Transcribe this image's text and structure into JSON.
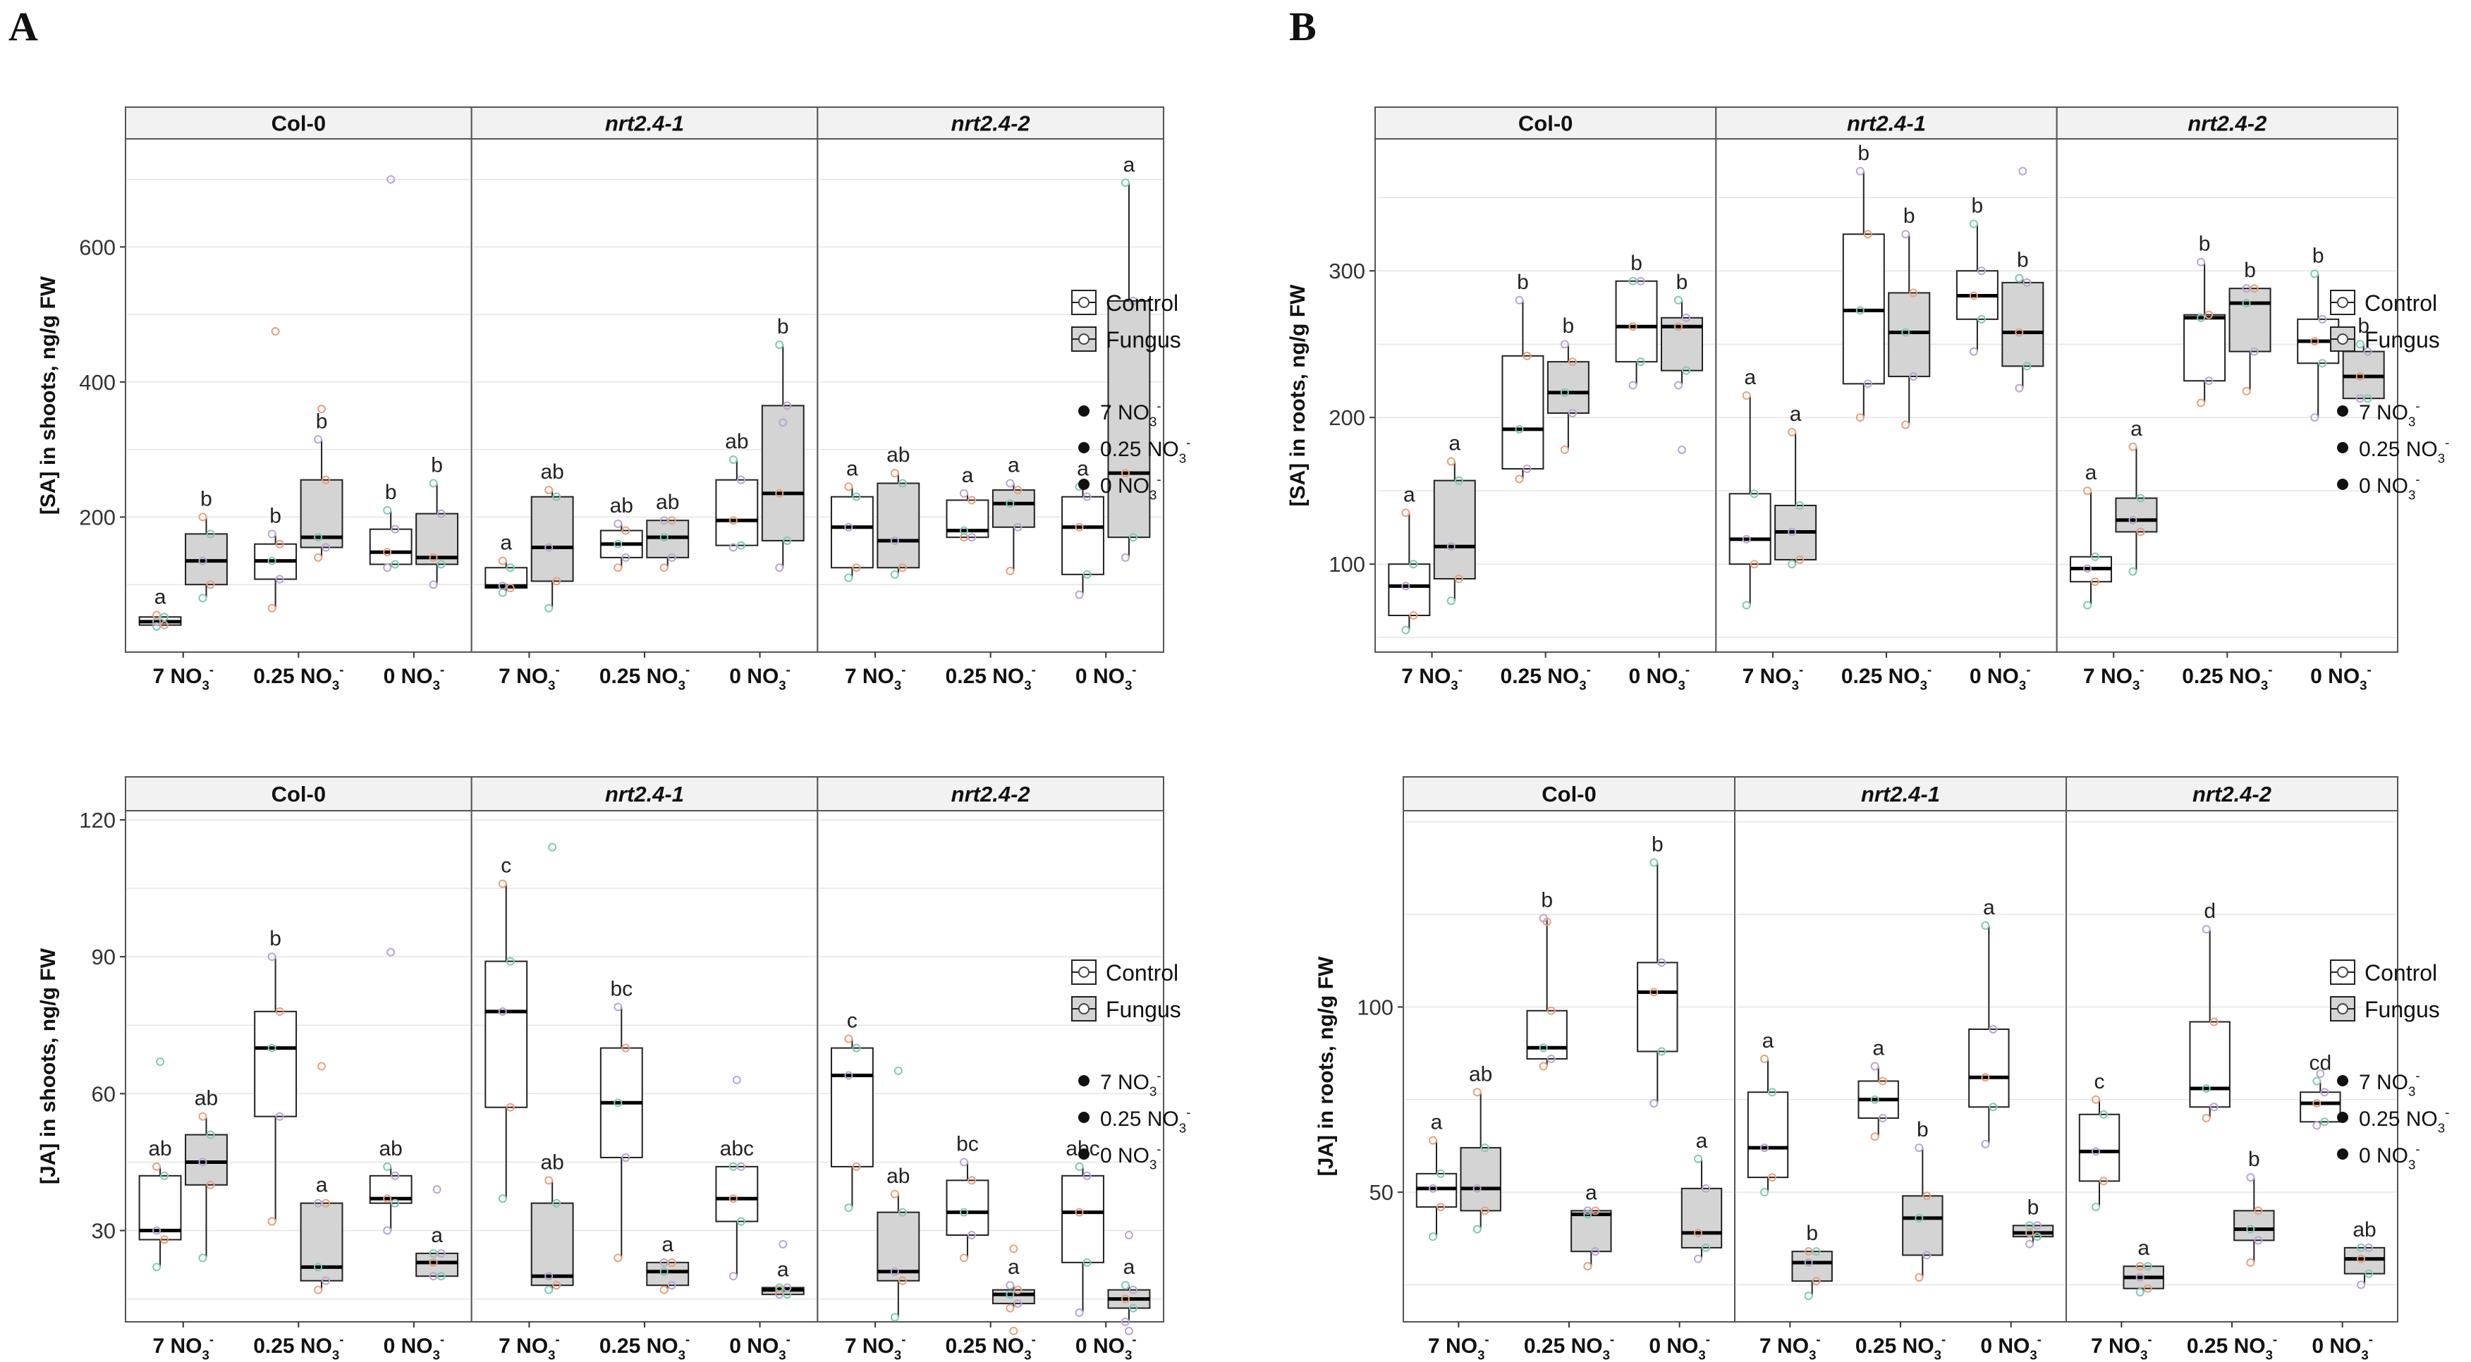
{
  "figure": {
    "panel_labels": [
      "A",
      "B"
    ]
  },
  "legend": {
    "treatment_labels": [
      "Control",
      "Fungus"
    ],
    "nitrate_labels": [
      "7 NO3-",
      "0.25 NO3-",
      "0 NO3-"
    ],
    "nitrate_parts": [
      {
        "num": "7",
        "ion": "NO",
        "sub": "3",
        "sup": "-"
      },
      {
        "num": "0.25",
        "ion": "NO",
        "sub": "3",
        "sup": "-"
      },
      {
        "num": "0",
        "ion": "NO",
        "sub": "3",
        "sup": "-"
      }
    ]
  },
  "chart_data": [
    {
      "type": "box",
      "panel": "A",
      "position": "top",
      "ylabel": "[SA] in shoots, ng/g FW",
      "ylim": [
        0,
        760
      ],
      "yticks": [
        200,
        400,
        600
      ],
      "facets": [
        "Col-0",
        "nrt2.4-1",
        "nrt2.4-2"
      ],
      "categories": [
        "7 NO3-",
        "0.25 NO3-",
        "0 NO3-"
      ],
      "series": [
        {
          "name": "Control",
          "boxes": [
            [
              {
                "q1": 40,
                "median": 45,
                "q3": 52,
                "low": 38,
                "high": 55,
                "letter": "a"
              },
              {
                "q1": 108,
                "median": 135,
                "q3": 160,
                "low": 65,
                "high": 175,
                "letter": "b"
              },
              {
                "q1": 130,
                "median": 148,
                "q3": 182,
                "low": 125,
                "high": 210,
                "letter": "b"
              }
            ],
            [
              {
                "q1": 95,
                "median": 98,
                "q3": 125,
                "low": 88,
                "high": 135,
                "letter": "a"
              },
              {
                "q1": 140,
                "median": 160,
                "q3": 180,
                "low": 125,
                "high": 190,
                "letter": "ab"
              },
              {
                "q1": 158,
                "median": 195,
                "q3": 255,
                "low": 155,
                "high": 285,
                "letter": "ab"
              }
            ],
            [
              {
                "q1": 125,
                "median": 185,
                "q3": 230,
                "low": 110,
                "high": 245,
                "letter": "a"
              },
              {
                "q1": 170,
                "median": 180,
                "q3": 225,
                "low": 170,
                "high": 235,
                "letter": "a"
              },
              {
                "q1": 115,
                "median": 185,
                "q3": 230,
                "low": 85,
                "high": 245,
                "letter": "a"
              }
            ]
          ]
        },
        {
          "name": "Fungus",
          "boxes": [
            [
              {
                "q1": 100,
                "median": 135,
                "q3": 175,
                "low": 80,
                "high": 200,
                "letter": "b"
              },
              {
                "q1": 155,
                "median": 170,
                "q3": 255,
                "low": 140,
                "high": 315,
                "letter": "b"
              },
              {
                "q1": 130,
                "median": 140,
                "q3": 205,
                "low": 100,
                "high": 250,
                "letter": "b"
              }
            ],
            [
              {
                "q1": 105,
                "median": 155,
                "q3": 230,
                "low": 65,
                "high": 240,
                "letter": "ab"
              },
              {
                "q1": 140,
                "median": 170,
                "q3": 195,
                "low": 125,
                "high": 195,
                "letter": "ab"
              },
              {
                "q1": 165,
                "median": 235,
                "q3": 365,
                "low": 125,
                "high": 455,
                "letter": "b"
              }
            ],
            [
              {
                "q1": 125,
                "median": 165,
                "q3": 250,
                "low": 115,
                "high": 265,
                "letter": "ab"
              },
              {
                "q1": 185,
                "median": 220,
                "q3": 240,
                "low": 120,
                "high": 250,
                "letter": "a"
              },
              {
                "q1": 170,
                "median": 265,
                "q3": 520,
                "low": 140,
                "high": 695,
                "letter": "a"
              }
            ]
          ]
        }
      ],
      "outliers": [
        [
          0,
          1,
          0,
          475
        ],
        [
          0,
          1,
          1,
          360
        ],
        [
          1,
          2,
          1,
          340
        ],
        [
          0,
          2,
          0,
          700
        ]
      ]
    },
    {
      "type": "box",
      "panel": "B",
      "position": "top",
      "ylabel": "[SA] in roots, ng/g FW",
      "ylim": [
        40,
        390
      ],
      "yticks": [
        100,
        200,
        300
      ],
      "facets": [
        "Col-0",
        "nrt2.4-1",
        "nrt2.4-2"
      ],
      "categories": [
        "7 NO3-",
        "0.25 NO3-",
        "0 NO3-"
      ],
      "series": [
        {
          "name": "Control",
          "boxes": [
            [
              {
                "q1": 65,
                "median": 85,
                "q3": 100,
                "low": 55,
                "high": 135,
                "letter": "a"
              },
              {
                "q1": 165,
                "median": 192,
                "q3": 242,
                "low": 158,
                "high": 280,
                "letter": "b"
              },
              {
                "q1": 238,
                "median": 262,
                "q3": 293,
                "low": 222,
                "high": 293,
                "letter": "b"
              }
            ],
            [
              {
                "q1": 100,
                "median": 117,
                "q3": 148,
                "low": 72,
                "high": 215,
                "letter": "a"
              },
              {
                "q1": 223,
                "median": 273,
                "q3": 325,
                "low": 200,
                "high": 368,
                "letter": "b"
              },
              {
                "q1": 267,
                "median": 283,
                "q3": 300,
                "low": 245,
                "high": 332,
                "letter": "b"
              }
            ],
            [
              {
                "q1": 88,
                "median": 97,
                "q3": 105,
                "low": 72,
                "high": 150,
                "letter": "a"
              },
              {
                "q1": 225,
                "median": 268,
                "q3": 270,
                "low": 210,
                "high": 306,
                "letter": "b"
              },
              {
                "q1": 237,
                "median": 252,
                "q3": 267,
                "low": 200,
                "high": 298,
                "letter": "b"
              }
            ]
          ]
        },
        {
          "name": "Fungus",
          "boxes": [
            [
              {
                "q1": 90,
                "median": 112,
                "q3": 157,
                "low": 75,
                "high": 170,
                "letter": "a"
              },
              {
                "q1": 203,
                "median": 217,
                "q3": 238,
                "low": 178,
                "high": 250,
                "letter": "b"
              },
              {
                "q1": 232,
                "median": 262,
                "q3": 268,
                "low": 222,
                "high": 280,
                "letter": "b"
              }
            ],
            [
              {
                "q1": 103,
                "median": 122,
                "q3": 140,
                "low": 100,
                "high": 190,
                "letter": "a"
              },
              {
                "q1": 228,
                "median": 258,
                "q3": 285,
                "low": 195,
                "high": 325,
                "letter": "b"
              },
              {
                "q1": 235,
                "median": 258,
                "q3": 292,
                "low": 220,
                "high": 295,
                "letter": "b"
              }
            ],
            [
              {
                "q1": 122,
                "median": 130,
                "q3": 145,
                "low": 95,
                "high": 180,
                "letter": "a"
              },
              {
                "q1": 245,
                "median": 278,
                "q3": 288,
                "low": 218,
                "high": 288,
                "letter": "b"
              },
              {
                "q1": 213,
                "median": 228,
                "q3": 245,
                "low": 213,
                "high": 250,
                "letter": "b"
              }
            ]
          ]
        }
      ],
      "outliers": [
        [
          0,
          2,
          1,
          178
        ],
        [
          1,
          2,
          1,
          368
        ]
      ]
    },
    {
      "type": "box",
      "panel": "A",
      "position": "bottom",
      "ylabel": "[JA] in shoots, ng/g FW",
      "ylim": [
        10,
        122
      ],
      "yticks": [
        30,
        60,
        90,
        120
      ],
      "facets": [
        "Col-0",
        "nrt2.4-1",
        "nrt2.4-2"
      ],
      "categories": [
        "7 NO3-",
        "0.25 NO3-",
        "0 NO3-"
      ],
      "series": [
        {
          "name": "Control",
          "boxes": [
            [
              {
                "q1": 28,
                "median": 30,
                "q3": 42,
                "low": 22,
                "high": 44,
                "letter": "ab"
              },
              {
                "q1": 55,
                "median": 70,
                "q3": 78,
                "low": 32,
                "high": 90,
                "letter": "b"
              },
              {
                "q1": 36,
                "median": 37,
                "q3": 42,
                "low": 30,
                "high": 44,
                "letter": "ab"
              }
            ],
            [
              {
                "q1": 57,
                "median": 78,
                "q3": 89,
                "low": 37,
                "high": 106,
                "letter": "c"
              },
              {
                "q1": 46,
                "median": 58,
                "q3": 70,
                "low": 24,
                "high": 79,
                "letter": "bc"
              },
              {
                "q1": 32,
                "median": 37,
                "q3": 44,
                "low": 20,
                "high": 44,
                "letter": "abc"
              }
            ],
            [
              {
                "q1": 44,
                "median": 64,
                "q3": 70,
                "low": 35,
                "high": 72,
                "letter": "c"
              },
              {
                "q1": 29,
                "median": 34,
                "q3": 41,
                "low": 24,
                "high": 45,
                "letter": "bc"
              },
              {
                "q1": 23,
                "median": 34,
                "q3": 42,
                "low": 12,
                "high": 44,
                "letter": "abc"
              }
            ]
          ]
        },
        {
          "name": "Fungus",
          "boxes": [
            [
              {
                "q1": 40,
                "median": 45,
                "q3": 51,
                "low": 24,
                "high": 55,
                "letter": "ab"
              },
              {
                "q1": 19,
                "median": 22,
                "q3": 36,
                "low": 17,
                "high": 36,
                "letter": "a"
              },
              {
                "q1": 20,
                "median": 23,
                "q3": 25,
                "low": 20,
                "high": 25,
                "letter": "a"
              }
            ],
            [
              {
                "q1": 18,
                "median": 20,
                "q3": 36,
                "low": 17,
                "high": 41,
                "letter": "ab"
              },
              {
                "q1": 18,
                "median": 21,
                "q3": 23,
                "low": 17,
                "high": 23,
                "letter": "a"
              },
              {
                "q1": 16,
                "median": 17,
                "q3": 17.5,
                "low": 16,
                "high": 17.5,
                "letter": "a"
              }
            ],
            [
              {
                "q1": 19,
                "median": 21,
                "q3": 34,
                "low": 11,
                "high": 38,
                "letter": "ab"
              },
              {
                "q1": 14,
                "median": 16,
                "q3": 17,
                "low": 13,
                "high": 18,
                "letter": "a"
              },
              {
                "q1": 13,
                "median": 15,
                "q3": 17,
                "low": 10,
                "high": 18,
                "letter": "a"
              }
            ]
          ]
        }
      ],
      "outliers": [
        [
          0,
          0,
          0,
          67
        ],
        [
          0,
          1,
          1,
          66
        ],
        [
          0,
          2,
          0,
          91
        ],
        [
          0,
          2,
          1,
          39
        ],
        [
          1,
          0,
          1,
          114
        ],
        [
          1,
          2,
          0,
          63
        ],
        [
          1,
          2,
          1,
          27
        ],
        [
          2,
          0,
          1,
          65
        ],
        [
          2,
          1,
          1,
          26
        ],
        [
          2,
          2,
          1,
          29
        ],
        [
          2,
          1,
          1,
          8
        ],
        [
          2,
          2,
          1,
          8
        ]
      ]
    },
    {
      "type": "box",
      "panel": "B",
      "position": "bottom",
      "ylabel": "[JA] in roots, ng/g FW",
      "ylim": [
        15,
        153
      ],
      "yticks": [
        50,
        100
      ],
      "facets": [
        "Col-0",
        "nrt2.4-1",
        "nrt2.4-2"
      ],
      "categories": [
        "7 NO3-",
        "0.25 NO3-",
        "0 NO3-"
      ],
      "series": [
        {
          "name": "Control",
          "boxes": [
            [
              {
                "q1": 46,
                "median": 51,
                "q3": 55,
                "low": 38,
                "high": 64,
                "letter": "a"
              },
              {
                "q1": 86,
                "median": 89,
                "q3": 99,
                "low": 84,
                "high": 124,
                "letter": "b"
              },
              {
                "q1": 88,
                "median": 104,
                "q3": 112,
                "low": 74,
                "high": 139,
                "letter": "b"
              }
            ],
            [
              {
                "q1": 54,
                "median": 62,
                "q3": 77,
                "low": 50,
                "high": 86,
                "letter": "a"
              },
              {
                "q1": 70,
                "median": 75,
                "q3": 80,
                "low": 65,
                "high": 84,
                "letter": "a"
              },
              {
                "q1": 73,
                "median": 81,
                "q3": 94,
                "low": 63,
                "high": 122,
                "letter": "a"
              }
            ],
            [
              {
                "q1": 53,
                "median": 61,
                "q3": 71,
                "low": 46,
                "high": 75,
                "letter": "c"
              },
              {
                "q1": 73,
                "median": 78,
                "q3": 96,
                "low": 70,
                "high": 121,
                "letter": "d"
              },
              {
                "q1": 69,
                "median": 74,
                "q3": 77,
                "low": 68,
                "high": 80,
                "letter": "cd"
              }
            ]
          ]
        },
        {
          "name": "Fungus",
          "boxes": [
            [
              {
                "q1": 45,
                "median": 51,
                "q3": 62,
                "low": 40,
                "high": 77,
                "letter": "ab"
              },
              {
                "q1": 34,
                "median": 44,
                "q3": 45,
                "low": 30,
                "high": 45,
                "letter": "a"
              },
              {
                "q1": 35,
                "median": 39,
                "q3": 51,
                "low": 32,
                "high": 59,
                "letter": "a"
              }
            ],
            [
              {
                "q1": 26,
                "median": 31,
                "q3": 34,
                "low": 22,
                "high": 34,
                "letter": "b"
              },
              {
                "q1": 33,
                "median": 43,
                "q3": 49,
                "low": 27,
                "high": 62,
                "letter": "b"
              },
              {
                "q1": 38,
                "median": 39,
                "q3": 41,
                "low": 36,
                "high": 41,
                "letter": "b"
              }
            ],
            [
              {
                "q1": 24,
                "median": 27,
                "q3": 30,
                "low": 23,
                "high": 30,
                "letter": "a"
              },
              {
                "q1": 37,
                "median": 40,
                "q3": 45,
                "low": 31,
                "high": 54,
                "letter": "b"
              },
              {
                "q1": 28,
                "median": 32,
                "q3": 35,
                "low": 25,
                "high": 35,
                "letter": "ab"
              }
            ]
          ]
        }
      ],
      "outliers": [
        [
          0,
          1,
          0,
          123
        ],
        [
          2,
          2,
          0,
          82
        ]
      ]
    }
  ]
}
